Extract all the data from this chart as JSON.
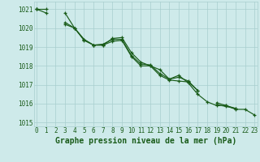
{
  "title": "Graphe pression niveau de la mer (hPa)",
  "x": [
    0,
    1,
    2,
    3,
    4,
    5,
    6,
    7,
    8,
    9,
    10,
    11,
    12,
    13,
    14,
    15,
    16,
    17,
    18,
    19,
    20,
    21,
    22,
    23
  ],
  "line1": [
    1021.0,
    1021.0,
    null,
    1020.8,
    1020.0,
    1019.4,
    1019.1,
    1019.1,
    1019.3,
    1019.35,
    1018.5,
    1018.0,
    1018.0,
    1017.5,
    1017.25,
    1017.2,
    1017.15,
    1016.7,
    null,
    1015.95,
    1015.85,
    1015.75,
    null,
    null
  ],
  "line2": [
    1021.0,
    1020.8,
    null,
    1020.3,
    1020.0,
    1019.4,
    1019.1,
    1019.15,
    1019.4,
    1019.4,
    1018.55,
    1018.1,
    1018.05,
    1017.6,
    1017.3,
    1017.4,
    1017.2,
    1016.7,
    null,
    1016.05,
    1015.9,
    1015.75,
    null,
    null
  ],
  "line3": [
    1021.0,
    null,
    null,
    1020.2,
    1020.0,
    1019.35,
    1019.1,
    1019.1,
    1019.45,
    1019.5,
    1018.7,
    1018.2,
    1018.0,
    1017.8,
    1017.3,
    1017.5,
    1017.1,
    1016.5,
    1016.1,
    1015.9,
    1015.9,
    1015.7,
    1015.7,
    1015.4
  ],
  "ylim": [
    1014.8,
    1021.4
  ],
  "yticks": [
    1015,
    1016,
    1017,
    1018,
    1019,
    1020,
    1021
  ],
  "xticks": [
    0,
    1,
    2,
    3,
    4,
    5,
    6,
    7,
    8,
    9,
    10,
    11,
    12,
    13,
    14,
    15,
    16,
    17,
    18,
    19,
    20,
    21,
    22,
    23
  ],
  "line_color": "#1a5c1a",
  "marker": "+",
  "bg_color": "#ceeaea",
  "grid_color": "#a8cece",
  "title_color": "#1a5c1a",
  "tick_color": "#1a5c1a",
  "title_fontsize": 7.0,
  "tick_fontsize": 5.5
}
